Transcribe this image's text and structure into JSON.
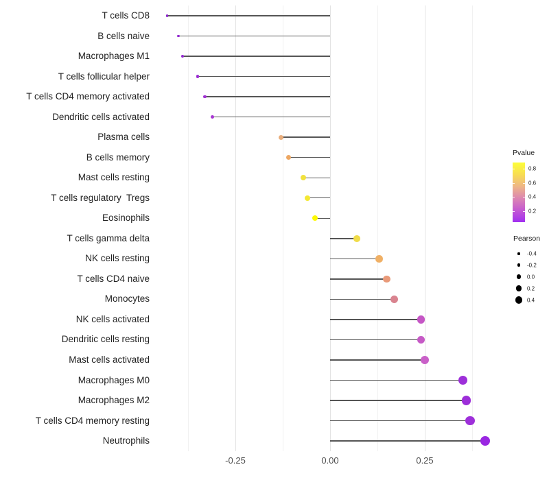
{
  "chart_data": {
    "type": "scatter",
    "subtype": "lollipop",
    "orientation": "horizontal",
    "title": "",
    "xlabel": "",
    "ylabel": "",
    "baseline": 0,
    "xlim": [
      -0.462,
      0.44
    ],
    "grid": "vertical-only",
    "points": [
      {
        "label": "T cells CD8",
        "pearson": -0.43,
        "color": "#8a23c9"
      },
      {
        "label": "B cells naive",
        "pearson": -0.4,
        "color": "#9229cf"
      },
      {
        "label": "Macrophages M1",
        "pearson": -0.39,
        "color": "#9229cf"
      },
      {
        "label": "T cells follicular helper",
        "pearson": -0.35,
        "color": "#9c2ed3"
      },
      {
        "label": "T cells CD4 memory activated",
        "pearson": -0.33,
        "color": "#a132d3"
      },
      {
        "label": "Dendritic cells activated",
        "pearson": -0.31,
        "color": "#a737d2"
      },
      {
        "label": "Plasma cells",
        "pearson": -0.13,
        "color": "#e9ae7d"
      },
      {
        "label": "B cells memory",
        "pearson": -0.11,
        "color": "#eda763"
      },
      {
        "label": "Mast cells resting",
        "pearson": -0.07,
        "color": "#f1e13d"
      },
      {
        "label": "T cells regulatory  Tregs",
        "pearson": -0.06,
        "color": "#f4e833"
      },
      {
        "label": "Eosinophils",
        "pearson": -0.04,
        "color": "#fdf903"
      },
      {
        "label": "T cells gamma delta",
        "pearson": 0.07,
        "color": "#f0dc49"
      },
      {
        "label": "NK cells resting",
        "pearson": 0.13,
        "color": "#f0b065"
      },
      {
        "label": "T cells CD4 naive",
        "pearson": 0.15,
        "color": "#e99a79"
      },
      {
        "label": "Monocytes",
        "pearson": 0.17,
        "color": "#d9838f"
      },
      {
        "label": "NK cells activated",
        "pearson": 0.24,
        "color": "#c556c5"
      },
      {
        "label": "Dendritic cells resting",
        "pearson": 0.24,
        "color": "#c65ac6"
      },
      {
        "label": "Mast cells activated",
        "pearson": 0.25,
        "color": "#c960c8"
      },
      {
        "label": "Macrophages M0",
        "pearson": 0.35,
        "color": "#9d2fd9"
      },
      {
        "label": "Macrophages M2",
        "pearson": 0.36,
        "color": "#9d2ed9"
      },
      {
        "label": "T cells CD4 memory resting",
        "pearson": 0.37,
        "color": "#9e30da"
      },
      {
        "label": "Neutrophils",
        "pearson": 0.41,
        "color": "#9a27e2"
      }
    ],
    "x_ticks": [
      {
        "label": "-0.25",
        "value": -0.25
      },
      {
        "label": "0.00",
        "value": 0.0
      },
      {
        "label": "0.25",
        "value": 0.25
      }
    ],
    "x_minor_gridlines": [
      -0.375,
      -0.125,
      0.125,
      0.375
    ],
    "legends": {
      "pvalue": {
        "title": "Pvalue",
        "ticks": [
          {
            "label": "0.8",
            "value": 0.8
          },
          {
            "label": "0.6",
            "value": 0.6
          },
          {
            "label": "0.4",
            "value": 0.4
          },
          {
            "label": "0.2",
            "value": 0.2
          }
        ],
        "gradient_colors_bottom_to_top": [
          "#a02ff0",
          "#c459d2",
          "#dc86b2",
          "#eeb687",
          "#f8dd52",
          "#fcfe38"
        ]
      },
      "pearson": {
        "title": "Pearson",
        "items": [
          {
            "label": "-0.4",
            "value": -0.4
          },
          {
            "label": "-0.2",
            "value": -0.2
          },
          {
            "label": "0.0",
            "value": 0.0
          },
          {
            "label": "0.2",
            "value": 0.2
          },
          {
            "label": "0.4",
            "value": 0.4
          }
        ]
      }
    }
  }
}
